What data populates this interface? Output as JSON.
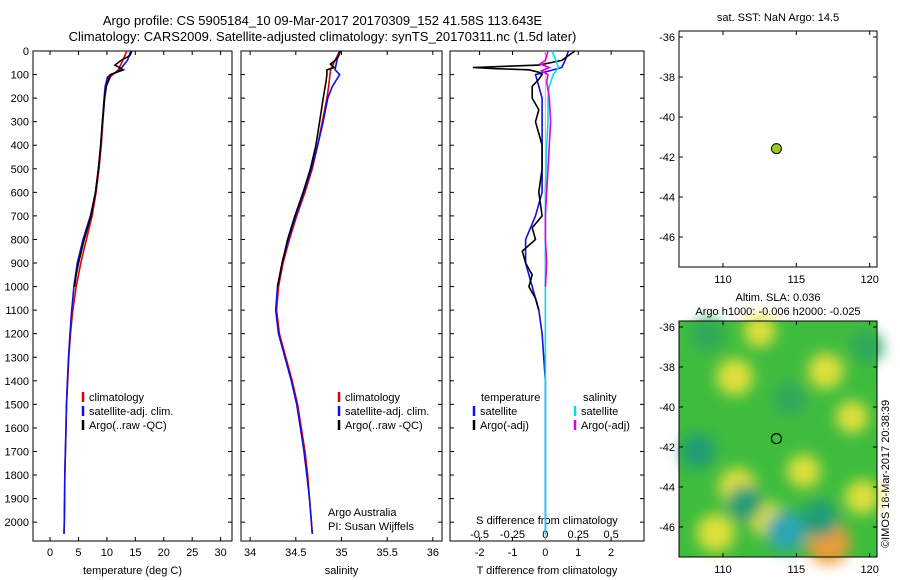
{
  "titles": {
    "line1": "Argo profile: CS 5905184_10 09-Mar-2017 20170309_152 41.58S 113.643E",
    "line2": "Climatology: CARS2009. Satellite-adjusted climatology: synTS_20170311.nc (1.5d later)"
  },
  "watermark": "©IMOS 18-Mar-2017 20:38:39",
  "colors": {
    "climatology": "#e00000",
    "satellite": "#1010e0",
    "argo": "#000000",
    "satellite_salinity": "#00e0e0",
    "argo_salinity": "#e000e0",
    "marker": "#99cc22"
  },
  "chart_data": [
    {
      "type": "line",
      "name": "temperature_profile",
      "xlabel": "temperature (deg C)",
      "xlim": [
        -3,
        32
      ],
      "xticks": [
        "0",
        "5",
        "10",
        "15",
        "20",
        "25",
        "30"
      ],
      "xtick_values": [
        0,
        5,
        10,
        15,
        20,
        25,
        30
      ],
      "ylim": [
        0,
        2080
      ],
      "yticks": [
        "0",
        "100",
        "200",
        "300",
        "400",
        "500",
        "600",
        "700",
        "800",
        "900",
        "1000",
        "1100",
        "1200",
        "1300",
        "1400",
        "1500",
        "1600",
        "1700",
        "1800",
        "1900",
        "2000"
      ],
      "ytick_values": [
        0,
        100,
        200,
        300,
        400,
        500,
        600,
        700,
        800,
        900,
        1000,
        1100,
        1200,
        1300,
        1400,
        1500,
        1600,
        1700,
        1800,
        1900,
        2000
      ],
      "legend": [
        "climatology",
        "satellite-adj. clim.",
        "Argo(..raw -QC)"
      ],
      "series": [
        {
          "name": "climatology",
          "color_key": "climatology",
          "depth": [
            0,
            40,
            80,
            110,
            150,
            200,
            300,
            400,
            500,
            600,
            700,
            800,
            900,
            1000,
            1100,
            1200,
            1300,
            1400,
            1500,
            1600,
            1700,
            1800,
            1900,
            2000,
            2050
          ],
          "values": [
            13.5,
            12.8,
            12.0,
            10.6,
            9.9,
            9.6,
            9.3,
            9.0,
            8.6,
            8.1,
            7.4,
            6.4,
            5.4,
            4.6,
            4.0,
            3.6,
            3.3,
            3.1,
            2.9,
            2.8,
            2.7,
            2.6,
            2.55,
            2.5,
            2.45
          ]
        },
        {
          "name": "satellite-adj. clim.",
          "color_key": "satellite",
          "depth": [
            0,
            40,
            80,
            110,
            150,
            200,
            300,
            400,
            500,
            600,
            700,
            800,
            900,
            1000,
            1100,
            1200,
            1300,
            1400,
            1500,
            1600,
            1700,
            1800,
            1900,
            2000,
            2050
          ],
          "values": [
            14.2,
            13.6,
            12.3,
            10.1,
            9.7,
            9.5,
            9.2,
            8.9,
            8.5,
            8.0,
            7.1,
            5.8,
            4.8,
            4.2,
            3.8,
            3.5,
            3.25,
            3.05,
            2.9,
            2.8,
            2.7,
            2.6,
            2.55,
            2.5,
            2.45
          ]
        },
        {
          "name": "Argo(..raw -QC)",
          "color_key": "argo",
          "depth": [
            0,
            20,
            40,
            60,
            80,
            100,
            120,
            150,
            200,
            300,
            400,
            500,
            600,
            700,
            800,
            900,
            950,
            1000
          ],
          "values": [
            14.4,
            14.0,
            12.5,
            11.4,
            12.9,
            10.6,
            10.3,
            9.9,
            9.6,
            9.2,
            8.9,
            8.5,
            8.0,
            7.2,
            6.0,
            5.0,
            4.6,
            4.3
          ]
        }
      ]
    },
    {
      "type": "line",
      "name": "salinity_profile",
      "xlabel": "salinity",
      "xlim": [
        33.9,
        36.1
      ],
      "xticks": [
        "34",
        "34.5",
        "35",
        "35.5",
        "36"
      ],
      "xtick_values": [
        34,
        34.5,
        35,
        35.5,
        36
      ],
      "ylim": [
        0,
        2080
      ],
      "legend": [
        "climatology",
        "satellite-adj. clim.",
        "Argo(..raw -QC)"
      ],
      "annotation": [
        "Argo Australia",
        "PI: Susan Wijffels"
      ],
      "series": [
        {
          "name": "climatology",
          "color_key": "climatology",
          "depth": [
            0,
            40,
            80,
            150,
            200,
            300,
            400,
            500,
            600,
            700,
            800,
            900,
            1000,
            1100,
            1200,
            1300,
            1400,
            1500,
            1600,
            1700,
            1800,
            1900,
            2000,
            2050
          ],
          "values": [
            34.98,
            34.93,
            34.88,
            34.86,
            34.84,
            34.79,
            34.74,
            34.68,
            34.6,
            34.51,
            34.43,
            34.36,
            34.31,
            34.29,
            34.32,
            34.39,
            34.46,
            34.52,
            34.56,
            34.6,
            34.63,
            34.65,
            34.67,
            34.68
          ]
        },
        {
          "name": "satellite-adj. clim.",
          "color_key": "satellite",
          "depth": [
            0,
            40,
            80,
            100,
            150,
            200,
            300,
            400,
            500,
            600,
            700,
            800,
            900,
            1000,
            1100,
            1200,
            1300,
            1400,
            1500,
            1600,
            1700,
            1800,
            1900,
            2000,
            2050
          ],
          "values": [
            34.98,
            34.95,
            34.93,
            34.98,
            34.9,
            34.85,
            34.8,
            34.74,
            34.67,
            34.59,
            34.5,
            34.42,
            34.35,
            34.3,
            34.28,
            34.31,
            34.38,
            34.45,
            34.51,
            34.55,
            34.59,
            34.62,
            34.65,
            34.67,
            34.68
          ]
        },
        {
          "name": "Argo(..raw -QC)",
          "color_key": "argo",
          "depth": [
            0,
            20,
            40,
            55,
            70,
            80,
            100,
            130,
            200,
            300,
            400,
            500,
            600,
            700,
            800,
            900,
            1000
          ],
          "values": [
            34.99,
            34.97,
            34.93,
            34.88,
            34.92,
            34.84,
            34.84,
            34.83,
            34.8,
            34.76,
            34.72,
            34.66,
            34.58,
            34.49,
            34.41,
            34.35,
            34.3
          ]
        }
      ]
    },
    {
      "type": "line",
      "name": "difference_profile",
      "xlabel": "T difference from climatology",
      "xlabel_top": "S difference from climatology",
      "xlim": [
        -2.9,
        3
      ],
      "xticks": [
        "-2",
        "-1",
        "0",
        "1",
        "2"
      ],
      "xtick_values": [
        -2,
        -1,
        0,
        1,
        2
      ],
      "s_xticks": [
        "-0.5",
        "-0.25",
        "0",
        "0.25",
        "0.5"
      ],
      "s_xtick_values": [
        -0.5,
        -0.25,
        0,
        0.25,
        0.5
      ],
      "ylim": [
        0,
        2080
      ],
      "legend_temperature": {
        "header": "temperature",
        "items": [
          "satellite",
          "Argo(-adj)"
        ]
      },
      "legend_salinity": {
        "header": "salinity",
        "items": [
          "satellite",
          "Argo(-adj)"
        ]
      },
      "series": [
        {
          "name": "temperature satellite",
          "color_key": "satellite",
          "depth": [
            0,
            40,
            70,
            100,
            150,
            200,
            300,
            400,
            500,
            600,
            700,
            800,
            900,
            1000,
            1100,
            1200,
            1300,
            1400,
            1600,
            1800,
            2000,
            2050
          ],
          "values": [
            0.7,
            0.6,
            0.5,
            -0.3,
            -0.2,
            -0.1,
            -0.1,
            -0.1,
            -0.1,
            -0.1,
            -0.3,
            -0.6,
            -0.6,
            -0.4,
            -0.2,
            -0.1,
            -0.05,
            0,
            0,
            0,
            0,
            0
          ]
        },
        {
          "name": "temperature Argo(-adj)",
          "color_key": "argo",
          "depth": [
            0,
            40,
            60,
            70,
            75,
            80,
            90,
            100,
            120,
            150,
            200,
            250,
            300,
            400,
            500,
            600,
            700,
            750,
            800,
            850,
            900,
            950,
            1000,
            1050,
            1100
          ],
          "values": [
            0.9,
            0.5,
            -0.2,
            -2.2,
            -1.5,
            -0.5,
            -0.2,
            -0.1,
            -0.2,
            -0.4,
            -0.4,
            -0.2,
            -0.3,
            -0.1,
            -0.1,
            -0.2,
            -0.1,
            -0.4,
            -0.3,
            -0.7,
            -0.6,
            -0.4,
            -0.5,
            -0.3,
            -0.2
          ]
        },
        {
          "name": "salinity satellite",
          "color_key": "satellite_salinity",
          "depth": [
            0,
            40,
            70,
            100,
            150,
            200,
            300,
            400,
            600,
            800,
            1000,
            1200,
            1400,
            1600,
            1800,
            2000,
            2050
          ],
          "values": [
            0.05,
            0.08,
            0.1,
            0.06,
            0.03,
            0.02,
            0.02,
            0.01,
            0.0,
            0.0,
            0.0,
            0.0,
            0.0,
            0.0,
            0.0,
            0.0,
            0.0
          ]
        },
        {
          "name": "salinity Argo(-adj)",
          "color_key": "argo_salinity",
          "depth": [
            0,
            40,
            55,
            70,
            85,
            100,
            130,
            200,
            300,
            400,
            500,
            600,
            700,
            800,
            900,
            1000
          ],
          "values": [
            0.02,
            0.0,
            -0.04,
            0.03,
            -0.03,
            0.02,
            0.01,
            0.03,
            0.04,
            0.03,
            0.02,
            0.01,
            0.0,
            0.0,
            0.01,
            0.0
          ]
        }
      ]
    },
    {
      "type": "scatter",
      "name": "sst_map",
      "title": "sat. SST: NaN Argo: 14.5",
      "xlim": [
        107,
        120.5
      ],
      "ylim": [
        -47.5,
        -35.7
      ],
      "xticks": [
        "110",
        "115",
        "120"
      ],
      "xtick_values": [
        110,
        115,
        120
      ],
      "yticks": [
        "-36",
        "-38",
        "-40",
        "-42",
        "-44",
        "-46"
      ],
      "ytick_values": [
        -36,
        -38,
        -40,
        -42,
        -44,
        -46
      ],
      "points": [
        {
          "lon": 113.643,
          "lat": -41.58
        }
      ]
    },
    {
      "type": "heatmap",
      "name": "sla_map",
      "title_line1": "Altim. SLA: 0.036",
      "title_line2": "Argo h1000: -0.006 h2000: -0.025",
      "xlim": [
        107,
        120.5
      ],
      "ylim": [
        -47.5,
        -35.7
      ],
      "xticks": [
        "110",
        "115",
        "120"
      ],
      "xtick_values": [
        110,
        115,
        120
      ],
      "yticks": [
        "-36",
        "-38",
        "-40",
        "-42",
        "-44",
        "-46"
      ],
      "ytick_values": [
        -36,
        -38,
        -40,
        -42,
        -44,
        -46
      ],
      "points": [
        {
          "lon": 113.643,
          "lat": -41.58
        }
      ],
      "blobs": [
        {
          "lon": 110.8,
          "lat": -38.5,
          "value": 0.55
        },
        {
          "lon": 117.0,
          "lat": -38.2,
          "value": 0.5
        },
        {
          "lon": 111.0,
          "lat": -44.0,
          "value": 0.6
        },
        {
          "lon": 109.5,
          "lat": -46.3,
          "value": 0.6
        },
        {
          "lon": 113.0,
          "lat": -45.6,
          "value": 0.45
        },
        {
          "lon": 117.2,
          "lat": -46.8,
          "value": 0.8
        },
        {
          "lon": 115.5,
          "lat": -43.2,
          "value": 0.4
        },
        {
          "lon": 119.5,
          "lat": -44.5,
          "value": 0.45
        },
        {
          "lon": 112.5,
          "lat": -36.2,
          "value": 0.35
        },
        {
          "lon": 118.8,
          "lat": -40.5,
          "value": 0.35
        },
        {
          "lon": 114.3,
          "lat": -46.2,
          "value": -0.7
        },
        {
          "lon": 116.6,
          "lat": -45.6,
          "value": -0.55
        },
        {
          "lon": 111.5,
          "lat": -44.8,
          "value": -0.5
        },
        {
          "lon": 108.3,
          "lat": -42.2,
          "value": -0.45
        },
        {
          "lon": 114.6,
          "lat": -39.6,
          "value": -0.4
        },
        {
          "lon": 109.0,
          "lat": -36.4,
          "value": -0.4
        },
        {
          "lon": 119.8,
          "lat": -37.0,
          "value": -0.35
        }
      ]
    }
  ]
}
